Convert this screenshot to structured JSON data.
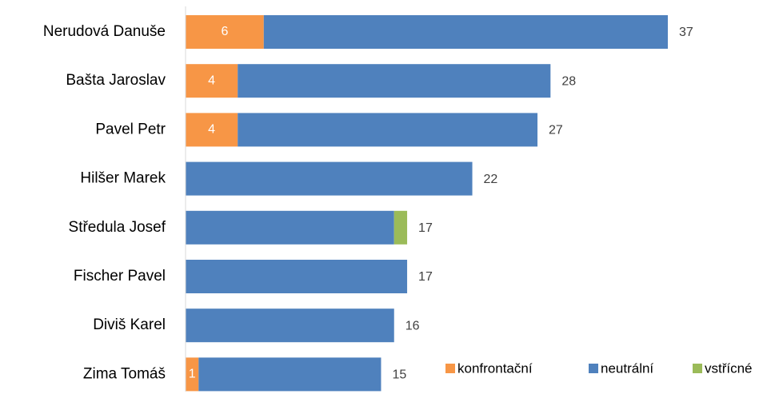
{
  "chart_data": {
    "type": "stacked_barh",
    "categories": [
      "Nerudová Danuše",
      "Bašta Jaroslav",
      "Pavel Petr",
      "Hilšer Marek",
      "Středula Josef",
      "Fischer Pavel",
      "Diviš Karel",
      "Zima Tomáš"
    ],
    "series": [
      {
        "name": "konfrontační",
        "color": "#f79646",
        "values": [
          6,
          4,
          4,
          0,
          0,
          0,
          0,
          1
        ]
      },
      {
        "name": "neutrální",
        "color": "#4f81bd",
        "values": [
          31,
          24,
          23,
          22,
          16,
          17,
          16,
          14
        ]
      },
      {
        "name": "vstřícné",
        "color": "#9bbb59",
        "values": [
          0,
          0,
          0,
          0,
          1,
          0,
          0,
          0
        ]
      }
    ],
    "totals": [
      37,
      28,
      27,
      22,
      17,
      17,
      16,
      15
    ],
    "xlim": [
      0,
      37
    ],
    "legend": "bottom-right"
  }
}
